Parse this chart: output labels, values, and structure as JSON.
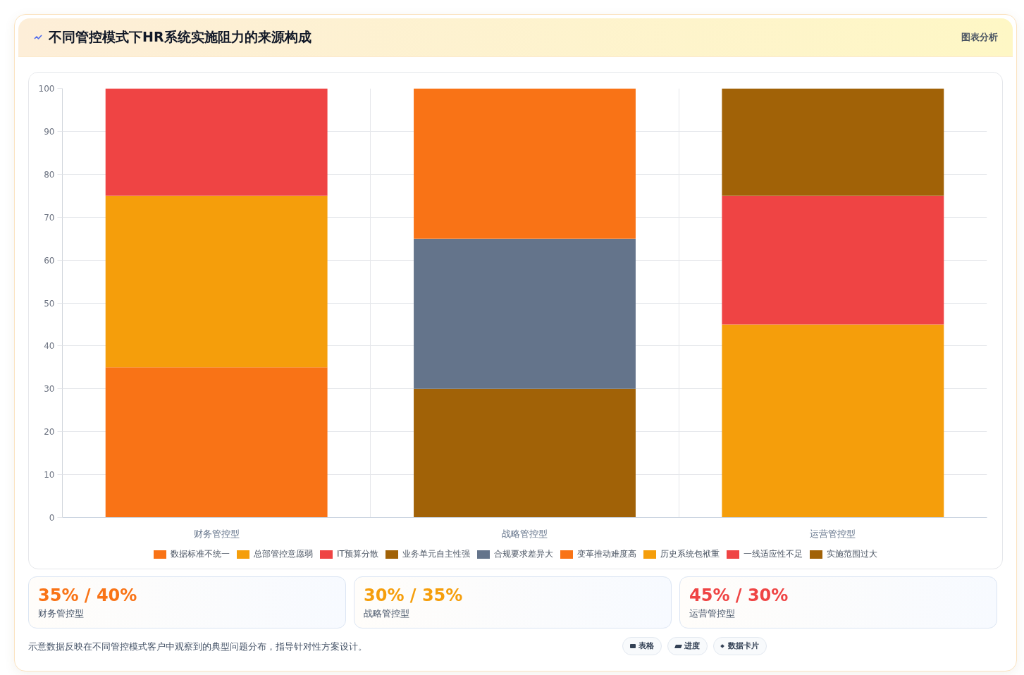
{
  "chart_data": [
    {
      "type": "bar",
      "title": "不同管控模式下HR系统实施阻力的来源构成",
      "stacked": true,
      "categories": [
        "财务管控型",
        "战略管控型",
        "运营管控型"
      ],
      "series": [
        {
          "name": "数据标准不统一",
          "color": "#f97316",
          "values": [
            35,
            null,
            null
          ]
        },
        {
          "name": "总部管控意愿弱",
          "color": "#f59e0b",
          "values": [
            40,
            null,
            null
          ]
        },
        {
          "name": "IT预算分散",
          "color": "#ef4444",
          "values": [
            25,
            null,
            null
          ]
        },
        {
          "name": "业务单元自主性强",
          "color": "#a16207",
          "values": [
            null,
            30,
            null
          ]
        },
        {
          "name": "合规要求差异大",
          "color": "#64748b",
          "values": [
            null,
            35,
            null
          ]
        },
        {
          "name": "变革推动难度高",
          "color": "#f97316",
          "values": [
            null,
            35,
            null
          ]
        },
        {
          "name": "历史系统包袱重",
          "color": "#f59e0b",
          "values": [
            null,
            null,
            45
          ]
        },
        {
          "name": "一线适应性不足",
          "color": "#ef4444",
          "values": [
            null,
            null,
            30
          ]
        },
        {
          "name": "实施范围过大",
          "color": "#a16207",
          "values": [
            null,
            null,
            25
          ]
        }
      ],
      "ylim": [
        0,
        100
      ],
      "yticks": [
        0,
        10,
        20,
        30,
        40,
        50,
        60,
        70,
        80,
        90,
        100
      ],
      "grid": true,
      "legend": "bottom",
      "annotations": [
        "图表分析",
        "示意数据反映在不同管控模式客户中观察到的典型问题分布，指导针对性方案设计。",
        "表格",
        "进度",
        "数据卡片"
      ]
    },
    {
      "type": "other",
      "title": "35% / 40%",
      "subtitle": "财务管控型",
      "color": "#f97316"
    },
    {
      "type": "other",
      "title": "30% / 35%",
      "subtitle": "战略管控型",
      "color": "#f59e0b"
    },
    {
      "type": "other",
      "title": "45% / 30%",
      "subtitle": "运营管控型",
      "color": "#ef4444"
    }
  ]
}
